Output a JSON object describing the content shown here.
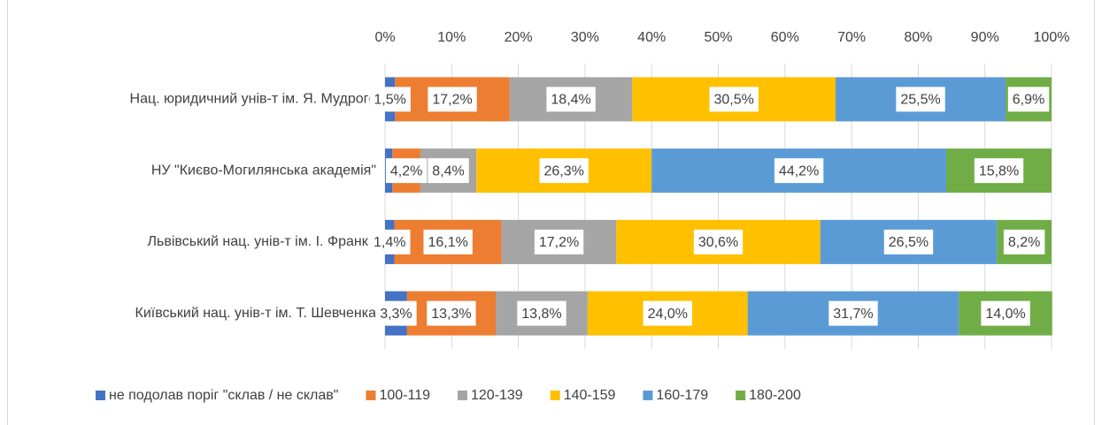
{
  "chart_data": {
    "type": "stacked-bar-horizontal",
    "categories": [
      "Нац. юридичний унів-т ім. Я. Мудрого",
      "НУ \"Києво-Могилянська академія\"",
      "Львівський нац. унів-т ім. І. Франка",
      "Київський нац. унів-т ім. Т. Шевченка"
    ],
    "series": [
      {
        "name": "не подолав поріг \"склав / не склав\"",
        "color": "#4472c4",
        "values": [
          1.5,
          1.1,
          1.4,
          3.3
        ],
        "value_labels": [
          "1,5%",
          null,
          "1,4%",
          "3,3%"
        ]
      },
      {
        "name": "100-119",
        "color": "#ed7d31",
        "values": [
          17.2,
          4.2,
          16.1,
          13.3
        ],
        "value_labels": [
          "17,2%",
          "4,2%",
          "16,1%",
          "13,3%"
        ]
      },
      {
        "name": "120-139",
        "color": "#a5a5a5",
        "values": [
          18.4,
          8.4,
          17.2,
          13.8
        ],
        "value_labels": [
          "18,4%",
          "8,4%",
          "17,2%",
          "13,8%"
        ]
      },
      {
        "name": "140-159",
        "color": "#ffc000",
        "values": [
          30.5,
          26.3,
          30.6,
          24.0
        ],
        "value_labels": [
          "30,5%",
          "26,3%",
          "30,6%",
          "24,0%"
        ]
      },
      {
        "name": "160-179",
        "color": "#5b9bd5",
        "values": [
          25.5,
          44.2,
          26.5,
          31.7
        ],
        "value_labels": [
          "25,5%",
          "44,2%",
          "26,5%",
          "31,7%"
        ]
      },
      {
        "name": "180-200",
        "color": "#70ad47",
        "values": [
          6.9,
          15.8,
          8.2,
          14.0
        ],
        "value_labels": [
          "6,9%",
          "15,8%",
          "8,2%",
          "14,0%"
        ]
      }
    ],
    "xlim": [
      0,
      100
    ],
    "xticks": [
      {
        "value": 0,
        "label": "0%"
      },
      {
        "value": 10,
        "label": "10%"
      },
      {
        "value": 20,
        "label": "20%"
      },
      {
        "value": 30,
        "label": "30%"
      },
      {
        "value": 40,
        "label": "40%"
      },
      {
        "value": 50,
        "label": "50%"
      },
      {
        "value": 60,
        "label": "60%"
      },
      {
        "value": 70,
        "label": "70%"
      },
      {
        "value": 80,
        "label": "80%"
      },
      {
        "value": 90,
        "label": "90%"
      },
      {
        "value": 100,
        "label": "100%"
      }
    ],
    "grid": true,
    "legend": "bottom"
  }
}
